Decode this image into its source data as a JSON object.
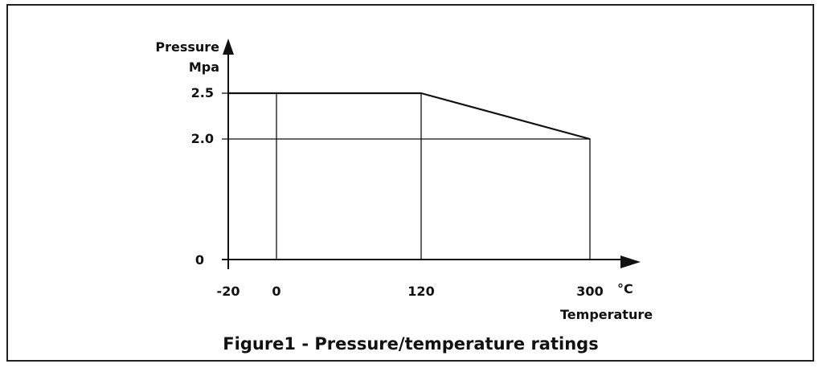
{
  "chart_data": {
    "type": "line",
    "caption": "Figure1 - Pressure/temperature ratings",
    "y_axis": {
      "title_line1": "Pressure",
      "title_line2": "Mpa",
      "ticks": [
        "2.5",
        "2.0",
        "0"
      ]
    },
    "x_axis": {
      "unit": "°C",
      "title": "Temperature",
      "ticks": [
        "-20",
        "0",
        "120",
        "300"
      ]
    },
    "series": [
      {
        "x": [
          -20,
          120,
          300
        ],
        "y": [
          2.5,
          2.5,
          2.0
        ]
      }
    ],
    "colors": {
      "line": "#111111",
      "background": "#ffffff"
    }
  }
}
